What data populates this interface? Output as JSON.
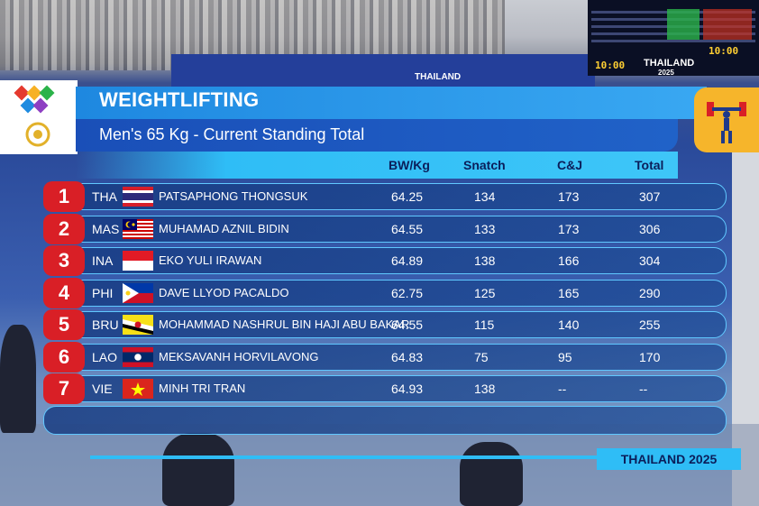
{
  "arena": {
    "scoreboard_clock_1": "10:00",
    "scoreboard_clock_2": "10:00",
    "scoreboard_brand": "THAILAND",
    "scoreboard_year": "2025",
    "banner_text": "THAILAND"
  },
  "overlay": {
    "title": "WEIGHTLIFTING",
    "subtitle": "Men's 65 Kg  -  Current Standing Total",
    "columns": {
      "bw": "BW/Kg",
      "snatch": "Snatch",
      "cj": "C&J",
      "total": "Total"
    },
    "footer": "THAILAND 2025",
    "accent_color": "#2fbdf6",
    "rank_color": "#d91f26",
    "rows": [
      {
        "rank": "1",
        "country": "THA",
        "name": "PATSAPHONG THONGSUK",
        "bw": "64.25",
        "snatch": "134",
        "cj": "173",
        "total": "307",
        "flag": "thailand-flag"
      },
      {
        "rank": "2",
        "country": "MAS",
        "name": "MUHAMAD AZNIL BIDIN",
        "bw": "64.55",
        "snatch": "133",
        "cj": "173",
        "total": "306",
        "flag": "malaysia-flag"
      },
      {
        "rank": "3",
        "country": "INA",
        "name": "EKO YULI IRAWAN",
        "bw": "64.89",
        "snatch": "138",
        "cj": "166",
        "total": "304",
        "flag": "indonesia-flag"
      },
      {
        "rank": "4",
        "country": "PHI",
        "name": "DAVE LLYOD PACALDO",
        "bw": "62.75",
        "snatch": "125",
        "cj": "165",
        "total": "290",
        "flag": "philippines-flag"
      },
      {
        "rank": "5",
        "country": "BRU",
        "name": "MOHAMMAD NASHRUL BIN HAJI ABU BAKAR",
        "bw": "64.55",
        "snatch": "115",
        "cj": "140",
        "total": "255",
        "flag": "brunei-flag"
      },
      {
        "rank": "6",
        "country": "LAO",
        "name": "MEKSAVANH HORVILAVONG",
        "bw": "64.83",
        "snatch": "75",
        "cj": "95",
        "total": "170",
        "flag": "laos-flag"
      },
      {
        "rank": "7",
        "country": "VIE",
        "name": "MINH TRI TRAN",
        "bw": "64.93",
        "snatch": "138",
        "cj": "--",
        "total": "--",
        "flag": "vietnam-flag"
      }
    ]
  }
}
